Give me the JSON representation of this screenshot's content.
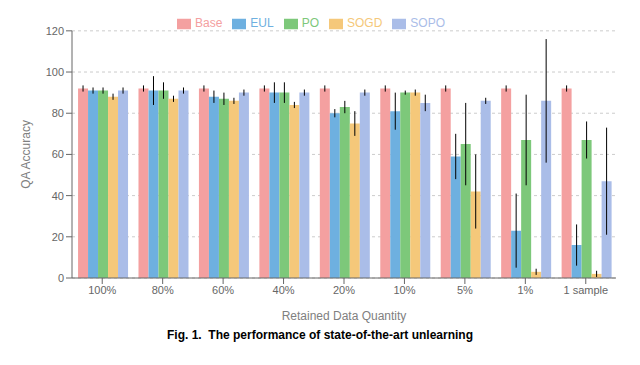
{
  "chart_data": {
    "type": "bar",
    "xlabel": "Retained Data Quantity",
    "ylabel": "QA Accuracy",
    "annotations": [
      "Fig. 1.  The performance of state-of-the-art unlearning"
    ],
    "categories": [
      "100%",
      "80%",
      "60%",
      "40%",
      "20%",
      "10%",
      "5%",
      "1%",
      "1 sample"
    ],
    "series": [
      {
        "name": "Base",
        "color": "#F4A0A0",
        "values": [
          92,
          92,
          92,
          92,
          92,
          92,
          92,
          92,
          92
        ],
        "errors": [
          1.5,
          1.5,
          1.5,
          1.5,
          1.5,
          1.5,
          1.5,
          1.5,
          1.5
        ]
      },
      {
        "name": "EUL",
        "color": "#6EB0E0",
        "values": [
          91,
          91,
          88,
          90,
          80,
          81,
          59,
          23,
          16
        ],
        "errors": [
          1.5,
          7,
          3,
          5,
          2,
          9,
          11,
          18,
          10
        ]
      },
      {
        "name": "PO",
        "color": "#7DC87A",
        "values": [
          91,
          91,
          87,
          90,
          83,
          90,
          65,
          67,
          67
        ],
        "errors": [
          1.5,
          4,
          3,
          5,
          3,
          1,
          20,
          22,
          9
        ]
      },
      {
        "name": "SOGD",
        "color": "#F5C87A",
        "values": [
          88,
          87,
          86,
          84,
          75,
          90,
          42,
          3,
          2
        ],
        "errors": [
          1.5,
          1.5,
          1.5,
          1.5,
          6,
          1.5,
          18,
          1.5,
          1.5
        ]
      },
      {
        "name": "SOPO",
        "color": "#AABDE8",
        "values": [
          91,
          91,
          90,
          90,
          90,
          85,
          86,
          86,
          47
        ],
        "errors": [
          1.5,
          1.5,
          1.5,
          1.5,
          1.5,
          4,
          1.5,
          30,
          26
        ]
      }
    ],
    "ylim": [
      0,
      120
    ],
    "yticks": [
      0,
      20,
      40,
      60,
      80,
      100,
      120
    ],
    "grid": true,
    "legend": "top"
  }
}
